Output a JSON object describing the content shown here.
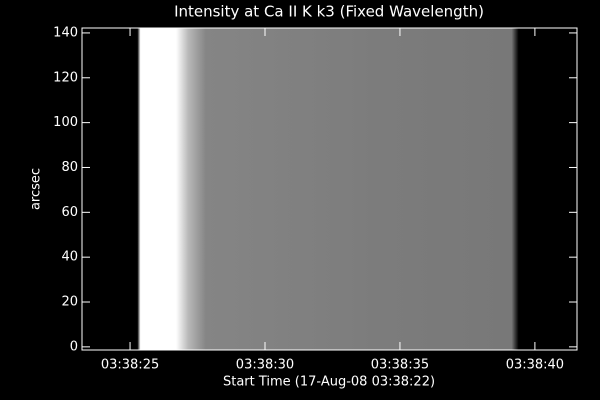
{
  "chart_data": {
    "type": "image",
    "title": "Intensity at Ca II K k3 (Fixed Wavelength)",
    "xlabel": "Start Time (17-Aug-08 03:38:22)",
    "ylabel": "arcsec",
    "xlim": [
      1.22,
      19.56
    ],
    "xticks": [
      {
        "value": 3,
        "label": "03:38:25"
      },
      {
        "value": 8,
        "label": "03:38:30"
      },
      {
        "value": 13,
        "label": "03:38:35"
      },
      {
        "value": 18,
        "label": "03:38:40"
      }
    ],
    "ylim": [
      -1.4,
      142.2
    ],
    "yticks": [
      0,
      20,
      40,
      60,
      80,
      100,
      120,
      140
    ]
  }
}
